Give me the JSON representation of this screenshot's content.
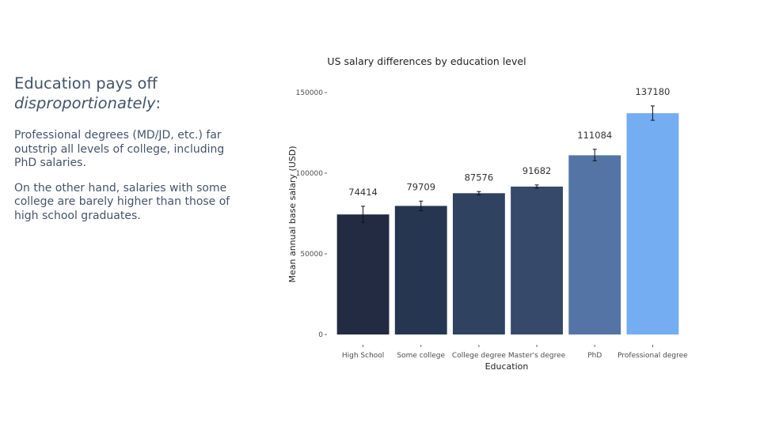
{
  "slide": {
    "headline_plain": "Education pays off",
    "headline_italic": "disproportionately",
    "headline_suffix": ":",
    "paragraphs": [
      "Professional degrees (MD/JD, etc.) far outstrip all levels of college, including PhD salaries.",
      "On the other hand, salaries with some college are barely higher than those of high school graduates."
    ]
  },
  "chart_data": {
    "type": "bar",
    "title": "US salary differences by education level",
    "xlabel": "Education",
    "ylabel": "Mean annual base salary (USD)",
    "categories": [
      "High School",
      "Some college",
      "College degree",
      "Master's degree",
      "PhD",
      "Professional degree"
    ],
    "values": [
      74414,
      79709,
      87576,
      91682,
      111084,
      137180
    ],
    "data_labels": [
      "74414",
      "79709",
      "87576",
      "91682",
      "111084",
      "137180"
    ],
    "error_low": [
      69500,
      76700,
      86600,
      90700,
      107700,
      132800
    ],
    "error_high": [
      79500,
      82700,
      88600,
      92700,
      114800,
      141700
    ],
    "colors": [
      "#222b41",
      "#273650",
      "#2f4260",
      "#36496a",
      "#5374a5",
      "#74adf1"
    ],
    "yticks": [
      0,
      50000,
      100000,
      150000
    ],
    "ytick_labels": [
      "0",
      "50000",
      "100000",
      "150000"
    ],
    "ylim": [
      0,
      150000
    ],
    "grid": false,
    "legend": false
  }
}
